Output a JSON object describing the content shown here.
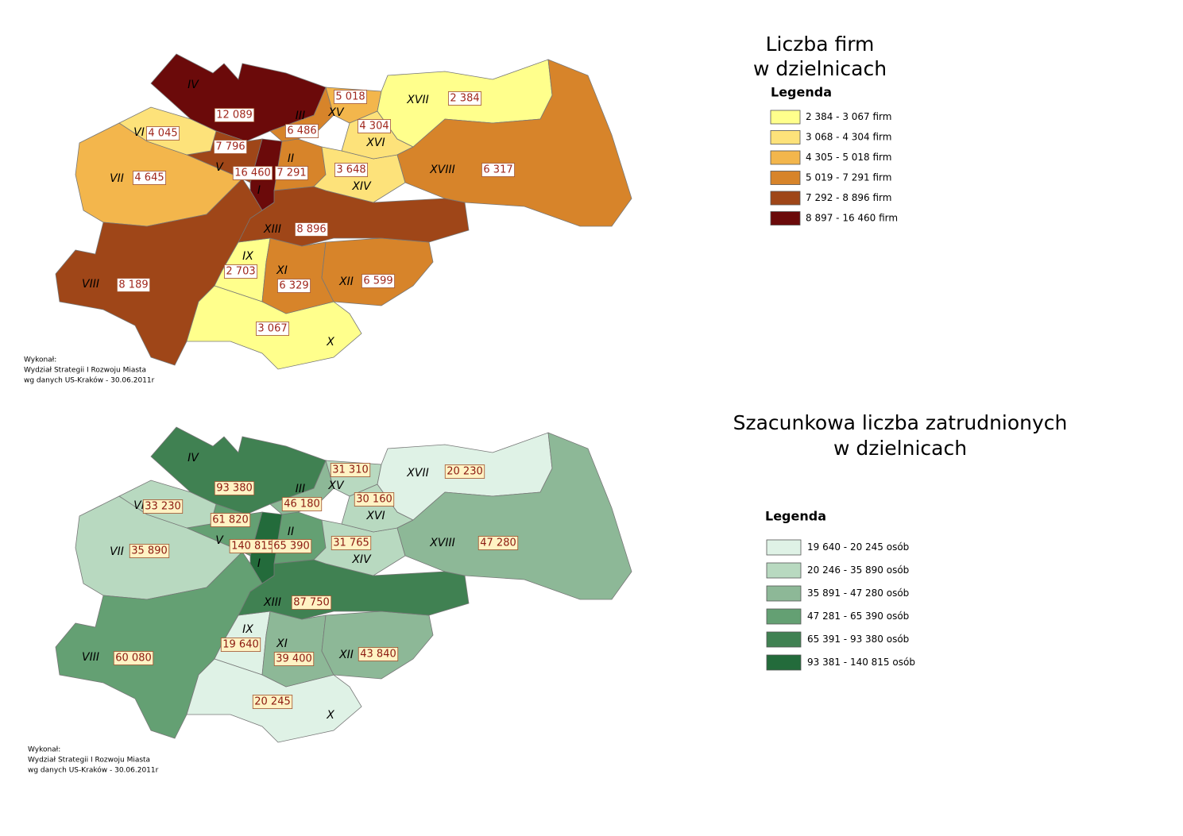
{
  "maps": [
    {
      "title": [
        "Liczba firm",
        "w dzielnicach"
      ],
      "legend": {
        "title": "Legenda",
        "items": [
          {
            "label": "2 384 - 3 067 firm",
            "color": "#ffff8c"
          },
          {
            "label": "3 068 - 4 304 firm",
            "color": "#fde27a"
          },
          {
            "label": "4 305 - 5 018 firm",
            "color": "#f3b64c"
          },
          {
            "label": "5 019 - 7 291 firm",
            "color": "#d7842a"
          },
          {
            "label": "7 292 - 8 896 firm",
            "color": "#9f4618"
          },
          {
            "label": "8 897 - 16 460 firm",
            "color": "#6b0a0a"
          }
        ]
      },
      "districts": [
        {
          "name": "I",
          "value": "16 460",
          "color": "#6b0a0a"
        },
        {
          "name": "II",
          "value": "7 291",
          "color": "#d7842a"
        },
        {
          "name": "III",
          "value": "6 486",
          "color": "#d7842a"
        },
        {
          "name": "IV",
          "value": "12 089",
          "color": "#6b0a0a"
        },
        {
          "name": "V",
          "value": "7 796",
          "color": "#9f4618"
        },
        {
          "name": "VI",
          "value": "4 045",
          "color": "#fde27a"
        },
        {
          "name": "VII",
          "value": "4 645",
          "color": "#f3b64c"
        },
        {
          "name": "VIII",
          "value": "8 189",
          "color": "#9f4618"
        },
        {
          "name": "IX",
          "value": "2 703",
          "color": "#ffff8c"
        },
        {
          "name": "X",
          "value": "3 067",
          "color": "#ffff8c"
        },
        {
          "name": "XI",
          "value": "6 329",
          "color": "#d7842a"
        },
        {
          "name": "XII",
          "value": "6 599",
          "color": "#d7842a"
        },
        {
          "name": "XIII",
          "value": "8 896",
          "color": "#9f4618"
        },
        {
          "name": "XIV",
          "value": "3 648",
          "color": "#fde27a"
        },
        {
          "name": "XV",
          "value": "5 018",
          "color": "#f3b64c"
        },
        {
          "name": "XVI",
          "value": "4 304",
          "color": "#fde27a"
        },
        {
          "name": "XVII",
          "value": "2 384",
          "color": "#ffff8c"
        },
        {
          "name": "XVIII",
          "value": "6 317",
          "color": "#d7842a"
        }
      ],
      "credits": [
        "Wykonał:",
        "Wydział Strategii I Rozwoju Miasta",
        "wg danych US-Kraków - 30.06.2011r"
      ]
    },
    {
      "title": [
        "Szacunkowa liczba zatrudnionych",
        "w dzielnicach"
      ],
      "legend": {
        "title": "Legenda",
        "items": [
          {
            "label": "19 640 - 20 245 osób",
            "color": "#dff2e6"
          },
          {
            "label": "20 246 - 35 890 osób",
            "color": "#b8d9c0"
          },
          {
            "label": "35 891 - 47 280 osób",
            "color": "#8db897"
          },
          {
            "label": "47 281 - 65 390 osób",
            "color": "#64a073"
          },
          {
            "label": "65 391 - 93 380 osób",
            "color": "#408152"
          },
          {
            "label": "93 381 - 140 815 osób",
            "color": "#236b3b"
          }
        ]
      },
      "districts": [
        {
          "name": "I",
          "value": "140 815",
          "color": "#236b3b"
        },
        {
          "name": "II",
          "value": "65 390",
          "color": "#64a073"
        },
        {
          "name": "III",
          "value": "46 180",
          "color": "#8db897"
        },
        {
          "name": "IV",
          "value": "93 380",
          "color": "#408152"
        },
        {
          "name": "V",
          "value": "61 820",
          "color": "#64a073"
        },
        {
          "name": "VI",
          "value": "33 230",
          "color": "#b8d9c0"
        },
        {
          "name": "VII",
          "value": "35 890",
          "color": "#b8d9c0"
        },
        {
          "name": "VIII",
          "value": "60 080",
          "color": "#64a073"
        },
        {
          "name": "IX",
          "value": "19 640",
          "color": "#dff2e6"
        },
        {
          "name": "X",
          "value": "20 245",
          "color": "#dff2e6"
        },
        {
          "name": "XI",
          "value": "39 400",
          "color": "#8db897"
        },
        {
          "name": "XII",
          "value": "43 840",
          "color": "#8db897"
        },
        {
          "name": "XIII",
          "value": "87 750",
          "color": "#408152"
        },
        {
          "name": "XIV",
          "value": "31 765",
          "color": "#b8d9c0"
        },
        {
          "name": "XV",
          "value": "31 310",
          "color": "#b8d9c0"
        },
        {
          "name": "XVI",
          "value": "30 160",
          "color": "#b8d9c0"
        },
        {
          "name": "XVII",
          "value": "20 230",
          "color": "#dff2e6"
        },
        {
          "name": "XVIII",
          "value": "47 280",
          "color": "#8db897"
        }
      ],
      "credits": [
        "Wykonał:",
        "Wydział Strategii I Rozwoju Miasta",
        "wg danych US-Kraków - 30.06.2011r"
      ]
    }
  ]
}
